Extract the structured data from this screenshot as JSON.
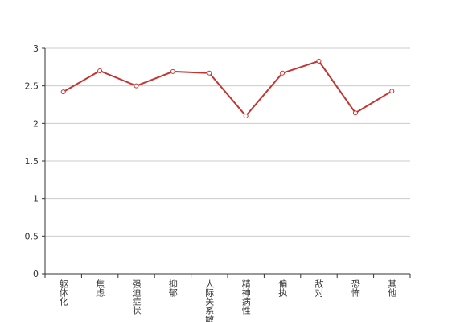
{
  "chart_data": {
    "type": "line",
    "categories": [
      "躯体化",
      "焦虑",
      "强迫症状",
      "抑郁",
      "人际关系敏感",
      "精神病性",
      "偏执",
      "敌对",
      "恐怖",
      "其他"
    ],
    "series": [
      {
        "color": "#c23531",
        "values": [
          2.42,
          2.7,
          2.5,
          2.69,
          2.67,
          2.1,
          2.67,
          2.83,
          2.14,
          2.43
        ]
      }
    ],
    "ylim": [
      0,
      3
    ],
    "yticks": [
      0,
      0.5,
      1,
      1.5,
      2,
      2.5,
      3
    ],
    "grid": true
  }
}
